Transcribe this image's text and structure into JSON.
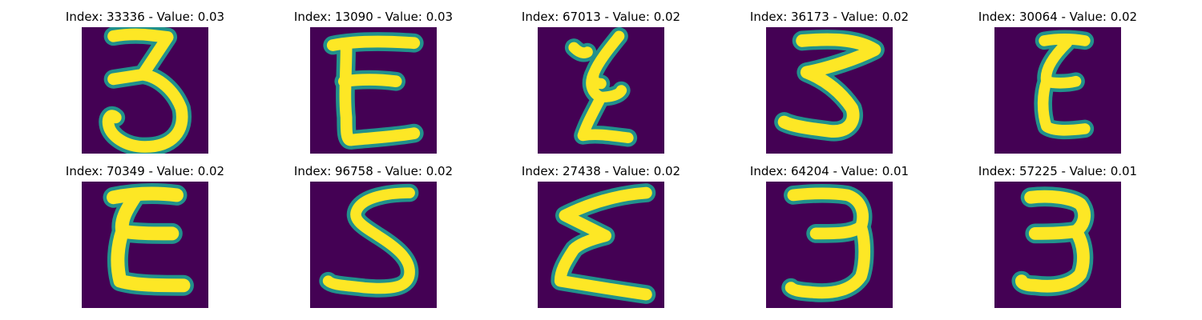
{
  "colors": {
    "background": "#440154",
    "stroke_core": "#fde725",
    "stroke_mid": "#5ec962",
    "stroke_edge": "#21918c"
  },
  "panels": [
    {
      "title": "Index: 33336 - Value: 0.03",
      "glyph": "3"
    },
    {
      "title": "Index: 13090 - Value: 0.03",
      "glyph": "E"
    },
    {
      "title": "Index: 67013 - Value: 0.02",
      "glyph": "E"
    },
    {
      "title": "Index: 36173 - Value: 0.02",
      "glyph": "3"
    },
    {
      "title": "Index: 30064 - Value: 0.02",
      "glyph": "E"
    },
    {
      "title": "Index: 70349 - Value: 0.02",
      "glyph": "E"
    },
    {
      "title": "Index: 96758 - Value: 0.02",
      "glyph": "S"
    },
    {
      "title": "Index: 27438 - Value: 0.02",
      "glyph": "E"
    },
    {
      "title": "Index: 64204 - Value: 0.01",
      "glyph": "3"
    },
    {
      "title": "Index: 57225 - Value: 0.01",
      "glyph": "3"
    }
  ]
}
